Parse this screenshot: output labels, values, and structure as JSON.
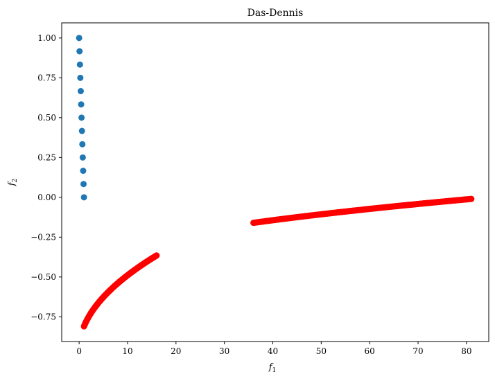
{
  "chart_data": {
    "type": "scatter",
    "title": "Das-Dennis",
    "xlabel": {
      "base": "f",
      "sub": "1"
    },
    "ylabel": {
      "base": "f",
      "sub": "2"
    },
    "xlim": [
      -3.6,
      84.6
    ],
    "ylim": [
      -0.905,
      1.095
    ],
    "xticks": [
      0,
      10,
      20,
      30,
      40,
      50,
      60,
      70,
      80
    ],
    "xtick_labels": [
      "0",
      "10",
      "20",
      "30",
      "40",
      "50",
      "60",
      "70",
      "80"
    ],
    "yticks": [
      -0.75,
      -0.5,
      -0.25,
      0.0,
      0.25,
      0.5,
      0.75,
      1.0
    ],
    "ytick_labels": [
      "−0.75",
      "−0.50",
      "−0.25",
      "0.00",
      "0.25",
      "0.50",
      "0.75",
      "1.00"
    ],
    "grid": false,
    "series": [
      {
        "color": "#1f77b4",
        "points": [
          [
            0.0,
            1.0
          ],
          [
            0.0833,
            0.9167
          ],
          [
            0.1667,
            0.8333
          ],
          [
            0.25,
            0.75
          ],
          [
            0.3333,
            0.6667
          ],
          [
            0.4167,
            0.5833
          ],
          [
            0.5,
            0.5
          ],
          [
            0.5833,
            0.4167
          ],
          [
            0.6667,
            0.3333
          ],
          [
            0.75,
            0.25
          ],
          [
            0.8333,
            0.1667
          ],
          [
            0.9167,
            0.0833
          ],
          [
            1.0,
            0.0
          ]
        ]
      },
      {
        "color": "#ff0000",
        "curves": [
          {
            "x_start": 1.0,
            "x_end": 16.0,
            "y_start": -0.81,
            "y_end": -0.365,
            "shape": "sqrt-concave"
          },
          {
            "x_start": 36.0,
            "x_end": 81.0,
            "y_start": -0.16,
            "y_end": -0.01,
            "shape": "sqrt-concave"
          }
        ]
      }
    ]
  }
}
